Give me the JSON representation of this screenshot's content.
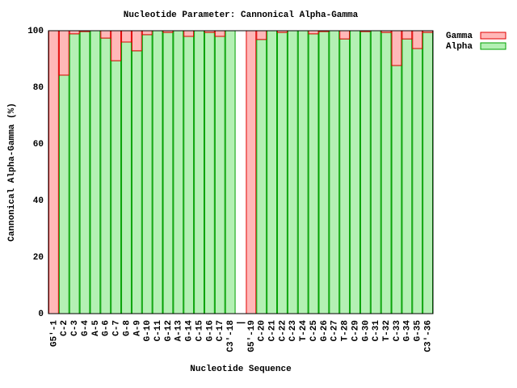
{
  "chart_data": {
    "type": "stacked_bar",
    "title": "Nucleotide Parameter: Cannonical Alpha-Gamma",
    "x_label": "Nucleotide Sequence",
    "y_label": "Cannonical Alpha-Gamma (%)",
    "categories": [
      "G5'-1",
      "C-2",
      "C-3",
      "G-4",
      "A-5",
      "G-6",
      "C-7",
      "G-8",
      "A-9",
      "G-10",
      "C-11",
      "G-12",
      "A-13",
      "G-14",
      "C-15",
      "G-16",
      "C-17",
      "C3'-18",
      "|",
      "G5'-19",
      "C-20",
      "C-21",
      "C-22",
      "C-23",
      "T-24",
      "C-25",
      "G-26",
      "C-27",
      "T-28",
      "C-29",
      "G-30",
      "C-31",
      "T-32",
      "C-33",
      "G-34",
      "G-35",
      "C3'-36"
    ],
    "series": [
      {
        "name": "Gamma",
        "color": "#ffb8b8",
        "stroke": "#e00000",
        "values": [
          100,
          15.7,
          1.1,
          0.3,
          0,
          2.6,
          10.6,
          4,
          7.1,
          1.4,
          0,
          0.6,
          0,
          2,
          0,
          0.6,
          2,
          0,
          null,
          100,
          3.1,
          0,
          0.6,
          0,
          0,
          1.1,
          0.3,
          0,
          2.9,
          0,
          0.3,
          0,
          0.6,
          12.3,
          2.9,
          6.3,
          0.6
        ]
      },
      {
        "name": "Alpha",
        "color": "#b4f0b4",
        "stroke": "#00a000",
        "values": [
          0,
          84.3,
          98.9,
          99.7,
          100,
          97.4,
          89.4,
          96,
          92.9,
          98.6,
          100,
          99.4,
          100,
          98,
          100,
          99.4,
          98,
          100,
          null,
          0,
          96.9,
          100,
          99.4,
          100,
          100,
          98.9,
          99.7,
          100,
          97.1,
          100,
          99.7,
          100,
          99.4,
          87.7,
          97.1,
          93.7,
          99.4
        ]
      }
    ],
    "ylim": [
      0,
      100
    ],
    "yticks": [
      0,
      20,
      40,
      60,
      80,
      100
    ],
    "legend": "outside-top-right"
  }
}
